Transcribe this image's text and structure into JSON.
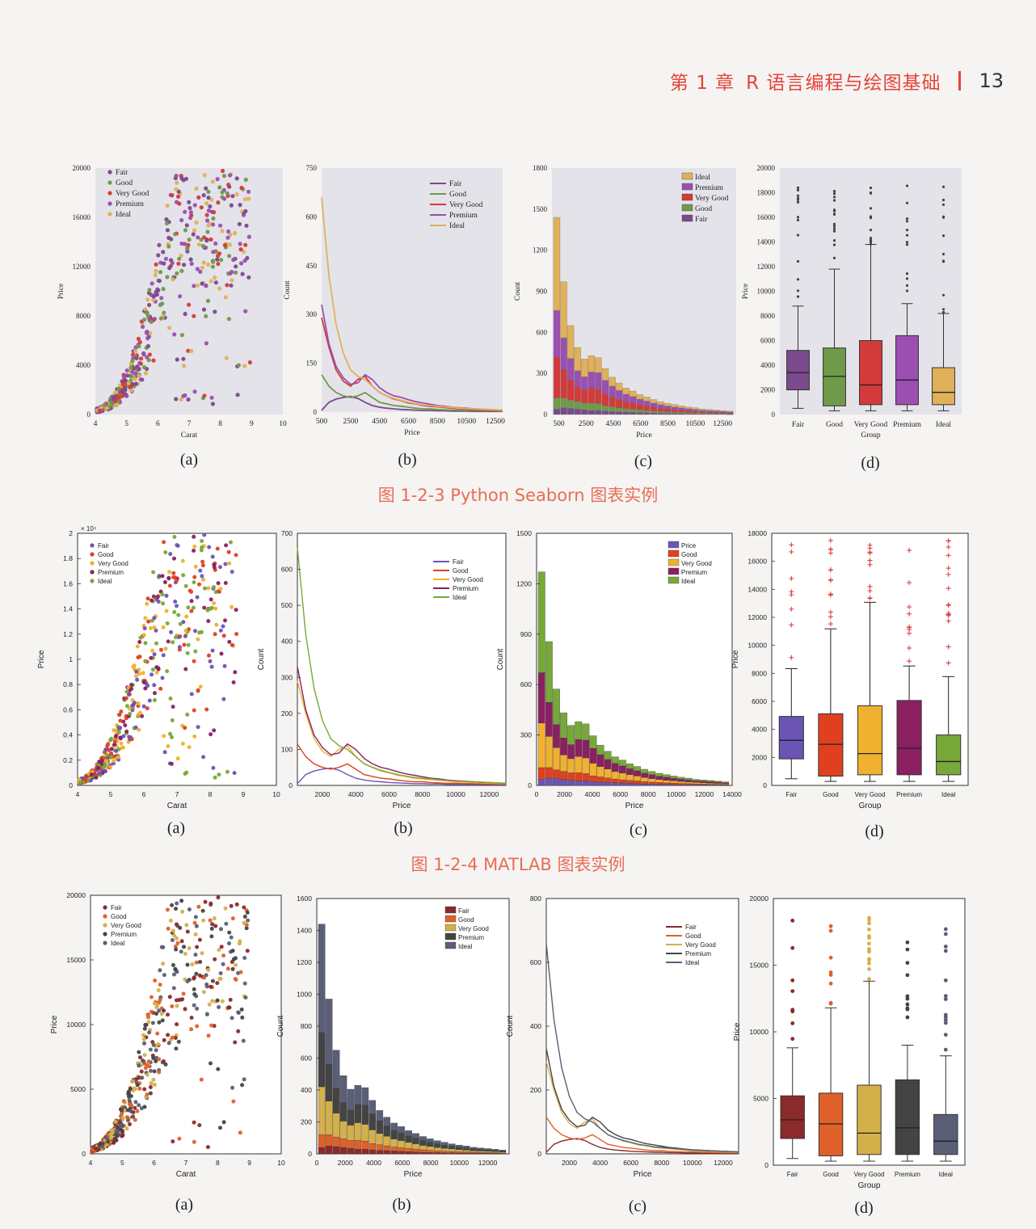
{
  "header": {
    "chapter": "第 1 章",
    "title": "R 语言编程与绘图基础",
    "page": "13"
  },
  "figures": [
    {
      "caption": "图 1-2-3   Python Seaborn 图表实例",
      "subs": [
        "(a)",
        "(b)",
        "(c)",
        "(d)"
      ]
    },
    {
      "caption": "图 1-2-4   MATLAB 图表实例",
      "subs": [
        "(a)",
        "(b)",
        "(c)",
        "(d)"
      ]
    },
    {
      "caption": "",
      "subs": [
        "(a)",
        "(b)",
        "(c)",
        "(d)"
      ]
    }
  ],
  "palettes": {
    "seaborn": [
      "#7a4a8c",
      "#6f9a4a",
      "#d33a3a",
      "#9b4fb0",
      "#e0b15a"
    ],
    "matlab": [
      "#6a55b5",
      "#e04020",
      "#f0b030",
      "#8a2060",
      "#77a83a"
    ],
    "ggplot": [
      "#8b2a2a",
      "#e0602a",
      "#d4b04a",
      "#444444",
      "#5a5f77"
    ]
  },
  "groups": [
    "Fair",
    "Good",
    "Very Good",
    "Premium",
    "Ideal"
  ],
  "chart_data": [
    {
      "type": "scatter",
      "style": "seaborn",
      "xlabel": "Carat",
      "ylabel": "Price",
      "xticks": [
        "4",
        "5",
        "6",
        "7",
        "8",
        "9",
        "10"
      ],
      "yticks": [
        "0",
        "4000",
        "8000",
        "12000",
        "16000",
        "20000"
      ],
      "xlim": [
        4,
        10
      ],
      "ylim": [
        0,
        20000
      ],
      "legend": [
        "Fair",
        "Good",
        "Very Good",
        "Premium",
        "Ideal"
      ]
    },
    {
      "type": "line",
      "style": "seaborn",
      "xlabel": "Price",
      "ylabel": "Count",
      "xticks": [
        "500",
        "2500",
        "4500",
        "6500",
        "8500",
        "10500",
        "12500"
      ],
      "yticks": [
        "0",
        "150",
        "300",
        "450",
        "600",
        "750"
      ],
      "xlim": [
        500,
        13000
      ],
      "ylim": [
        0,
        750
      ],
      "legend": [
        "Fair",
        "Good",
        "Very Good",
        "Premium",
        "Ideal"
      ],
      "x": [
        500,
        1000,
        1500,
        2000,
        2500,
        3000,
        3500,
        4000,
        4500,
        5000,
        5500,
        6000,
        6500,
        7000,
        7500,
        8000,
        8500,
        9000,
        9500,
        10000,
        10500,
        11000,
        11500,
        12000,
        12500,
        13000
      ],
      "series": [
        {
          "name": "Fair",
          "values": [
            5,
            30,
            40,
            45,
            48,
            42,
            30,
            20,
            15,
            12,
            10,
            8,
            7,
            6,
            5,
            5,
            4,
            4,
            3,
            3,
            3,
            2,
            2,
            2,
            2,
            2
          ]
        },
        {
          "name": "Good",
          "values": [
            115,
            80,
            60,
            50,
            45,
            50,
            60,
            45,
            30,
            25,
            20,
            18,
            15,
            12,
            10,
            10,
            8,
            7,
            6,
            6,
            5,
            5,
            4,
            4,
            4,
            3
          ]
        },
        {
          "name": "Very Good",
          "values": [
            290,
            200,
            130,
            95,
            80,
            100,
            110,
            80,
            60,
            50,
            40,
            35,
            28,
            25,
            20,
            18,
            16,
            14,
            12,
            10,
            9,
            8,
            7,
            6,
            5,
            5
          ]
        },
        {
          "name": "Premium",
          "values": [
            330,
            210,
            140,
            105,
            85,
            90,
            115,
            100,
            75,
            60,
            50,
            45,
            38,
            32,
            28,
            24,
            20,
            18,
            15,
            13,
            12,
            10,
            9,
            8,
            7,
            6
          ]
        },
        {
          "name": "Ideal",
          "values": [
            660,
            420,
            270,
            180,
            130,
            110,
            100,
            80,
            60,
            50,
            42,
            36,
            30,
            26,
            22,
            20,
            18,
            16,
            14,
            12,
            11,
            10,
            9,
            8,
            7,
            6
          ]
        }
      ]
    },
    {
      "type": "bar",
      "style": "seaborn",
      "stacked": true,
      "xlabel": "Price",
      "ylabel": "Count",
      "xticks": [
        "500",
        "2500",
        "4500",
        "6500",
        "8500",
        "10500",
        "12500"
      ],
      "yticks": [
        "0",
        "300",
        "600",
        "900",
        "1200",
        "1500",
        "1800"
      ],
      "xlim": [
        0,
        13500
      ],
      "ylim": [
        0,
        1800
      ],
      "legend": [
        "Ideal",
        "Premium",
        "Very Good",
        "Good",
        "Fair"
      ],
      "x": [
        500,
        1000,
        1500,
        2000,
        2500,
        3000,
        3500,
        4000,
        4500,
        5000,
        5500,
        6000,
        6500,
        7000,
        7500,
        8000,
        8500,
        9000,
        9500,
        10000,
        10500,
        11000,
        11500,
        12000,
        12500,
        13000
      ],
      "series": [
        {
          "name": "Fair",
          "values": [
            40,
            50,
            45,
            40,
            35,
            30,
            30,
            25,
            22,
            20,
            18,
            16,
            14,
            12,
            10,
            9,
            8,
            7,
            6,
            5,
            5,
            4,
            4,
            3,
            3,
            2
          ]
        },
        {
          "name": "Good",
          "values": [
            80,
            70,
            60,
            55,
            50,
            55,
            50,
            40,
            35,
            30,
            25,
            22,
            20,
            18,
            15,
            13,
            12,
            10,
            9,
            8,
            7,
            6,
            5,
            5,
            4,
            3
          ]
        },
        {
          "name": "Very Good",
          "values": [
            300,
            210,
            150,
            110,
            95,
            110,
            105,
            85,
            70,
            60,
            50,
            45,
            38,
            33,
            28,
            24,
            20,
            18,
            16,
            14,
            12,
            10,
            9,
            8,
            7,
            6
          ]
        },
        {
          "name": "Premium",
          "values": [
            340,
            230,
            155,
            115,
            95,
            115,
            120,
            100,
            80,
            65,
            55,
            48,
            40,
            35,
            30,
            26,
            22,
            20,
            17,
            15,
            13,
            11,
            10,
            9,
            8,
            7
          ]
        },
        {
          "name": "Ideal",
          "values": [
            680,
            410,
            240,
            170,
            130,
            120,
            110,
            85,
            65,
            55,
            45,
            40,
            34,
            30,
            26,
            22,
            20,
            18,
            15,
            13,
            12,
            10,
            9,
            8,
            7,
            6
          ]
        }
      ]
    },
    {
      "type": "box",
      "style": "seaborn",
      "xlabel": "Group",
      "ylabel": "Price",
      "categories": [
        "Fair",
        "Good",
        "Very Good",
        "Premium",
        "Ideal"
      ],
      "yticks": [
        "0",
        "2000",
        "4000",
        "6000",
        "8000",
        "10000",
        "12000",
        "14000",
        "16000",
        "18000",
        "20000"
      ],
      "ylim": [
        0,
        20000
      ],
      "boxes": [
        {
          "q1": 2000,
          "med": 3400,
          "q3": 5200,
          "lo": 500,
          "hi": 8800
        },
        {
          "q1": 700,
          "med": 3100,
          "q3": 5400,
          "lo": 300,
          "hi": 11800
        },
        {
          "q1": 800,
          "med": 2400,
          "q3": 6000,
          "lo": 300,
          "hi": 13800
        },
        {
          "q1": 800,
          "med": 2800,
          "q3": 6400,
          "lo": 300,
          "hi": 9000
        },
        {
          "q1": 800,
          "med": 1800,
          "q3": 3800,
          "lo": 300,
          "hi": 8200
        }
      ]
    },
    {
      "type": "scatter",
      "style": "matlab",
      "xlabel": "Carat",
      "ylabel": "Price",
      "xticks": [
        "4",
        "5",
        "6",
        "7",
        "8",
        "9",
        "10"
      ],
      "yticks": [
        "0",
        "0.2",
        "0.4",
        "0.6",
        "0.8",
        "1",
        "1.2",
        "1.4",
        "1.6",
        "1.8",
        "2"
      ],
      "xlim": [
        4,
        10
      ],
      "ylim": [
        0,
        20000
      ],
      "multiplier": "× 10⁴",
      "legend": [
        "Fair",
        "Good",
        "Very Good",
        "Premium",
        "Ideal"
      ]
    },
    {
      "type": "line",
      "style": "matlab",
      "xlabel": "Price",
      "ylabel": "Count",
      "xticks": [
        "2000",
        "4000",
        "6000",
        "8000",
        "10000",
        "12000"
      ],
      "yticks": [
        "0",
        "100",
        "200",
        "300",
        "400",
        "500",
        "600",
        "700"
      ],
      "xlim": [
        500,
        13000
      ],
      "ylim": [
        0,
        700
      ],
      "legend": [
        "Fair",
        "Good",
        "Very Good",
        "Premium",
        "Ideal"
      ]
    },
    {
      "type": "bar",
      "style": "matlab",
      "stacked": true,
      "xlabel": "Price",
      "ylabel": "Count",
      "xticks": [
        "0",
        "2000",
        "4000",
        "6000",
        "8000",
        "10000",
        "12000",
        "14000"
      ],
      "yticks": [
        "0",
        "300",
        "600",
        "900",
        "1200",
        "1500"
      ],
      "xlim": [
        0,
        14000
      ],
      "ylim": [
        0,
        1700
      ],
      "legend": [
        "Price",
        "Good",
        "Very Good",
        "Premium",
        "Ideal"
      ]
    },
    {
      "type": "box",
      "style": "matlab",
      "xlabel": "Group",
      "ylabel": "Price",
      "categories": [
        "Fair",
        "Good",
        "Very Good",
        "Premium",
        "Ideal"
      ],
      "yticks": [
        "0",
        "2000",
        "4000",
        "6000",
        "8000",
        "10000",
        "12000",
        "14000",
        "16000",
        "18000"
      ],
      "ylim": [
        0,
        19000
      ]
    },
    {
      "type": "scatter",
      "style": "ggplot",
      "xlabel": "Carat",
      "ylabel": "Price",
      "xticks": [
        "4",
        "5",
        "6",
        "7",
        "8",
        "9",
        "10"
      ],
      "yticks": [
        "0",
        "5000",
        "10000",
        "15000",
        "20000"
      ],
      "xlim": [
        4,
        10
      ],
      "ylim": [
        0,
        20000
      ],
      "legend": [
        "Fair",
        "Good",
        "Very Good",
        "Premium",
        "Ideal"
      ]
    },
    {
      "type": "bar",
      "style": "ggplot",
      "stacked": true,
      "xlabel": "Price",
      "ylabel": "Count",
      "xticks": [
        "0",
        "2000",
        "4000",
        "6000",
        "8000",
        "10000",
        "12000"
      ],
      "yticks": [
        "0",
        "200",
        "400",
        "600",
        "800",
        "1000",
        "1200",
        "1400",
        "1600"
      ],
      "xlim": [
        0,
        13500
      ],
      "ylim": [
        0,
        1600
      ],
      "legend": [
        "Fair",
        "Good",
        "Very Good",
        "Premium",
        "Ideal"
      ]
    },
    {
      "type": "line",
      "style": "ggplot",
      "xlabel": "Price",
      "ylabel": "Count",
      "xticks": [
        "2000",
        "4000",
        "6000",
        "8000",
        "10000",
        "12000"
      ],
      "yticks": [
        "0",
        "200",
        "400",
        "600",
        "800"
      ],
      "xlim": [
        500,
        13000
      ],
      "ylim": [
        0,
        800
      ],
      "legend": [
        "Fair",
        "Good",
        "Very Good",
        "Premium",
        "Ideal"
      ]
    },
    {
      "type": "box",
      "style": "ggplot",
      "xlabel": "Group",
      "ylabel": "Price",
      "categories": [
        "Fair",
        "Good",
        "Very Good",
        "Premium",
        "Ideal"
      ],
      "yticks": [
        "0",
        "5000",
        "10000",
        "15000",
        "20000"
      ],
      "ylim": [
        0,
        20000
      ]
    }
  ]
}
